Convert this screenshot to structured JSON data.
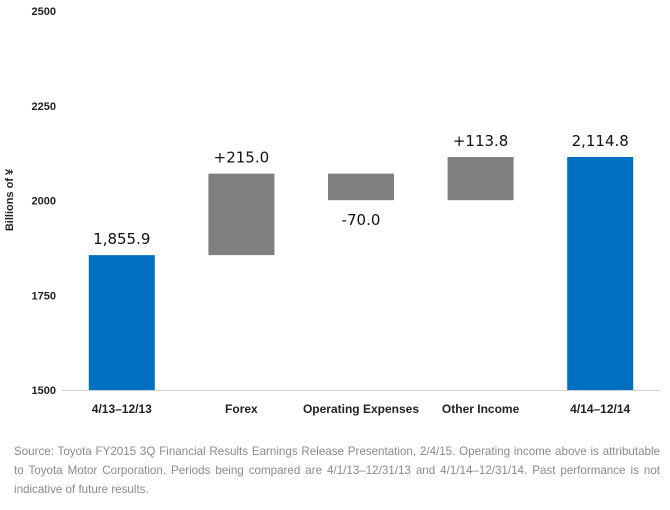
{
  "chart_data": {
    "type": "bar",
    "subtype": "waterfall",
    "categories": [
      "4/13–12/13",
      "Forex",
      "Operating Expenses",
      "Other Income",
      "4/14–12/14"
    ],
    "values": [
      1855.9,
      215.0,
      -70.0,
      113.8,
      2114.8
    ],
    "kinds": [
      "total",
      "delta",
      "delta",
      "delta",
      "total"
    ],
    "data_labels": [
      "1,855.9",
      "+215.0",
      "-70.0",
      "+113.8",
      "2,114.8"
    ],
    "ylabel": "Billions of ¥",
    "ylim": [
      1500,
      2500
    ],
    "yticks": [
      1500,
      1750,
      2000,
      2250,
      2500
    ],
    "ytick_labels": [
      "1500",
      "1750",
      "2000",
      "2250",
      "2500"
    ],
    "grid": false,
    "legend": "none",
    "colors": {
      "total": "#0070c0",
      "delta": "#7f7f7f"
    }
  },
  "footnote": "Source: Toyota FY2015 3Q Financial Results Earnings Release Presentation, 2/4/15. Operating income above is attributable to Toyota Motor Corporation. Periods being compared are 4/1/13–12/31/13 and 4/1/14–12/31/14. Past performance is not indicative of future results."
}
